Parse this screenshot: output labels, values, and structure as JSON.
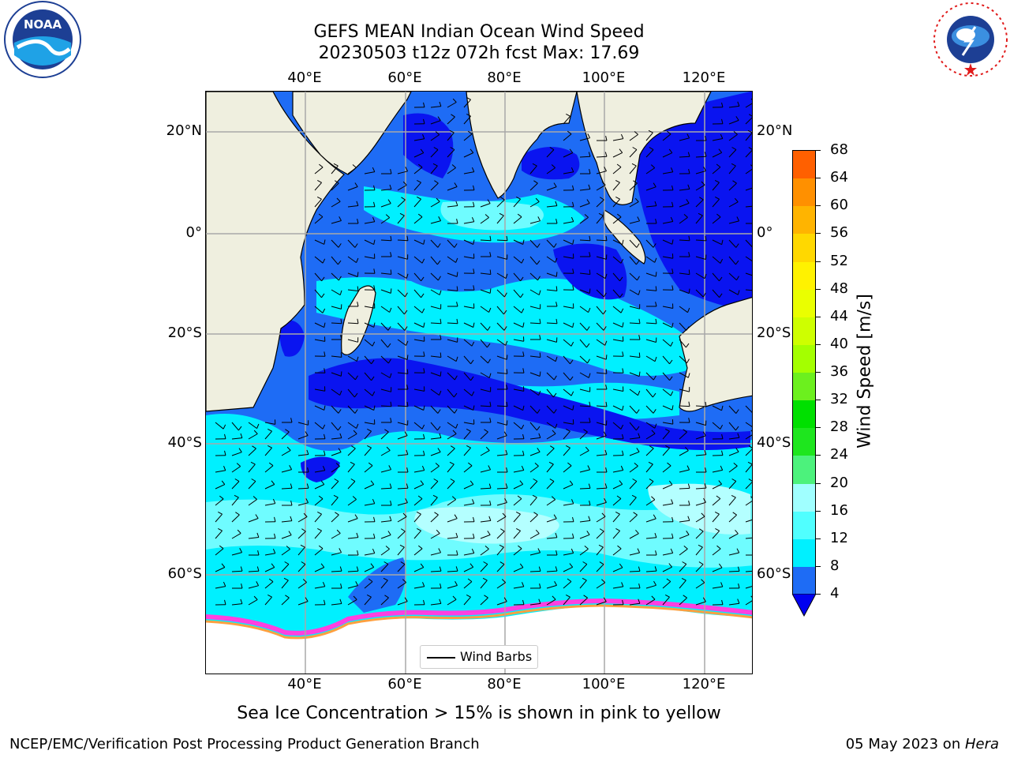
{
  "title": {
    "line1": "GEFS MEAN Indian Ocean Wind Speed",
    "line2": "20230503 t12z 072h fcst   Max: 17.69"
  },
  "logos": {
    "left": "NOAA",
    "left_ring_text": "NATIONAL OCEANIC AND ATMOSPHERIC ADMINISTRATION · U.S. DEPARTMENT OF COMMERCE",
    "right_ring_text": "NATIONAL WEATHER SERVICE"
  },
  "axes": {
    "top_lon": [
      "40°E",
      "60°E",
      "80°E",
      "100°E",
      "120°E"
    ],
    "bottom_lon": [
      "40°E",
      "60°E",
      "80°E",
      "100°E",
      "120°E"
    ],
    "left_lat": [
      "20°N",
      "0°",
      "20°S",
      "40°S",
      "60°S"
    ],
    "right_lat": [
      "20°N",
      "0°",
      "20°S",
      "40°S",
      "60°S"
    ]
  },
  "map_legend": {
    "label": "Wind Barbs"
  },
  "colorbar": {
    "label": "Wind Speed [m/s]",
    "ticks": [
      "68",
      "64",
      "60",
      "56",
      "52",
      "48",
      "44",
      "40",
      "36",
      "32",
      "28",
      "24",
      "20",
      "16",
      "12",
      "8",
      "4"
    ],
    "colors": [
      "#ff0000",
      "#ff3000",
      "#ff6000",
      "#ff9000",
      "#ffb400",
      "#ffd800",
      "#fff200",
      "#eaff00",
      "#ceff00",
      "#a4ff00",
      "#6cf01e",
      "#00e000",
      "#1ee61e",
      "#4cf27c",
      "#a0ffff",
      "#50ffff",
      "#00f0ff",
      "#1e6cf5"
    ],
    "under_color": "#0000f0"
  },
  "colors": {
    "land": "#efefdf",
    "ice": "#ffffff",
    "deep_blue": "#0a14f0",
    "mid_blue": "#1e6cf5",
    "cyan": "#00f0ff",
    "light_cyan": "#6ffcff",
    "palest": "#b4ffff",
    "ice_pink": "#ff40e0",
    "ice_orange": "#ffa040",
    "ice_yellow": "#ffe070"
  },
  "subtitle": "Sea Ice Concentration > 15% is shown in pink to yellow",
  "footer": {
    "left": "NCEP/EMC/Verification Post Processing Product Generation Branch",
    "right_date": "05 May 2023 on ",
    "right_machine": "Hera"
  }
}
